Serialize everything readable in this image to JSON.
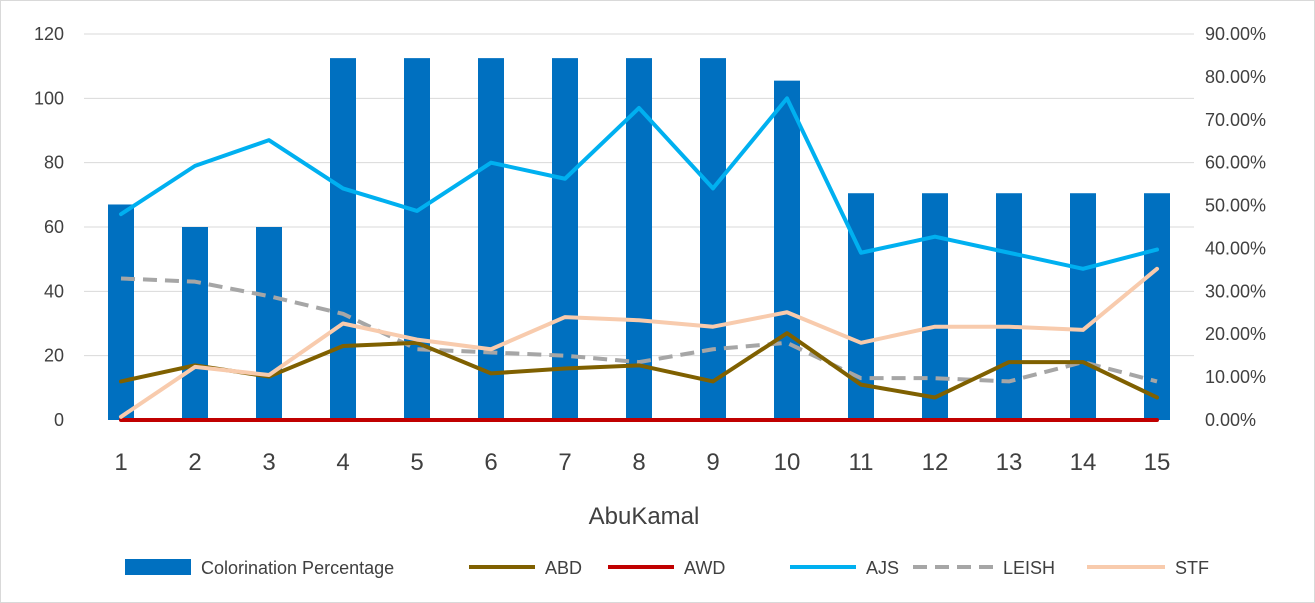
{
  "chart_data": {
    "type": "bar",
    "xlabel": "AbuKamal",
    "categories": [
      "1",
      "2",
      "3",
      "4",
      "5",
      "6",
      "7",
      "8",
      "9",
      "10",
      "11",
      "12",
      "13",
      "14",
      "15"
    ],
    "y_left": {
      "ylim": [
        0,
        120
      ],
      "ticks": [
        "0",
        "20",
        "40",
        "60",
        "80",
        "100",
        "120"
      ]
    },
    "y_right": {
      "ylim": [
        0,
        0.9
      ],
      "ticks": [
        "0.00%",
        "10.00%",
        "20.00%",
        "30.00%",
        "40.00%",
        "50.00%",
        "60.00%",
        "70.00%",
        "80.00%",
        "90.00%"
      ]
    },
    "grid": true,
    "legend_position": "bottom",
    "series": [
      {
        "name": "Colorination Percentage",
        "kind": "bar",
        "axis": "left",
        "color": "#0070c0",
        "dash": false,
        "values": [
          67,
          60,
          60,
          112.5,
          112.5,
          112.5,
          112.5,
          112.5,
          112.5,
          105.5,
          70.5,
          70.5,
          70.5,
          70.5,
          70.5
        ]
      },
      {
        "name": "ABD",
        "kind": "line",
        "axis": "left",
        "color": "#7f6000",
        "dash": false,
        "values": [
          12,
          17,
          13.5,
          23,
          24,
          14.5,
          16,
          17,
          12,
          27,
          11,
          7,
          18,
          18,
          7
        ]
      },
      {
        "name": "AWD",
        "kind": "line",
        "axis": "left",
        "color": "#c00000",
        "dash": false,
        "values": [
          0,
          0,
          0,
          0,
          0,
          0,
          0,
          0,
          0,
          0,
          0,
          0,
          0,
          0,
          0
        ]
      },
      {
        "name": "AJS",
        "kind": "line",
        "axis": "left",
        "color": "#00b0f0",
        "dash": false,
        "values": [
          64,
          79,
          87,
          72,
          65,
          80,
          75,
          97,
          72,
          100,
          52,
          57,
          52,
          47,
          53
        ]
      },
      {
        "name": "LEISH",
        "kind": "line",
        "axis": "left",
        "color": "#a6a6a6",
        "dash": true,
        "values": [
          44,
          43,
          38.5,
          33,
          22,
          21,
          20,
          18,
          22,
          24,
          13,
          13,
          12,
          18,
          12
        ]
      },
      {
        "name": "STF",
        "kind": "line",
        "axis": "left",
        "color": "#f8cbad",
        "dash": false,
        "values": [
          1,
          16.5,
          14,
          30,
          25,
          22,
          32,
          31,
          29,
          33.5,
          24,
          29,
          29,
          28,
          47
        ]
      }
    ]
  }
}
